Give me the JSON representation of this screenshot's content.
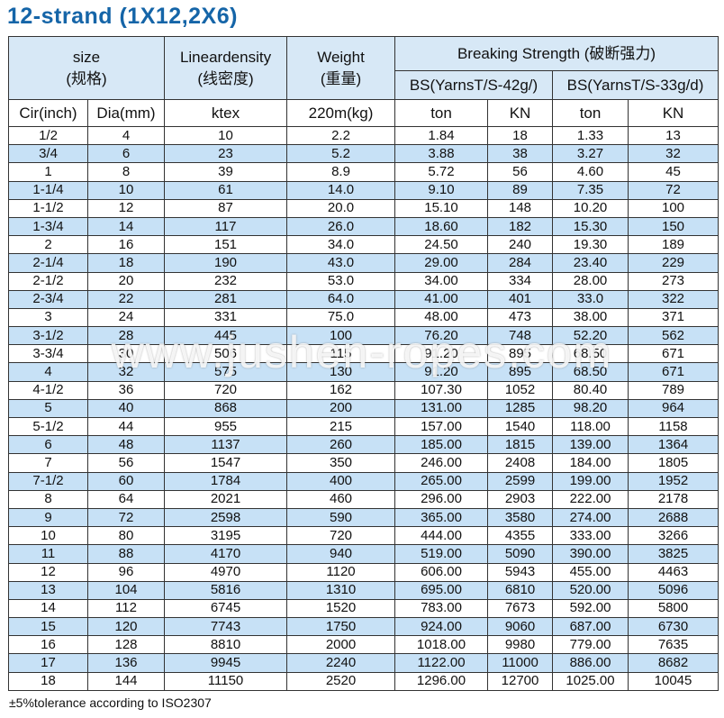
{
  "title": "12-strand (1X12,2X6)",
  "head": {
    "size": [
      "size",
      "(规格)"
    ],
    "linear": [
      "Lineardensity",
      "(线密度)"
    ],
    "weight": [
      "Weight",
      "(重量)"
    ],
    "breaking": "Breaking Strength (破断强力)",
    "bs42": "BS(YarnsT/S-42g/)",
    "bs33": "BS(YarnsT/S-33g/d)"
  },
  "units": [
    "Cir(inch)",
    "Dia(mm)",
    "ktex",
    "220m(kg)",
    "ton",
    "KN",
    "ton",
    "KN"
  ],
  "rows": [
    [
      "1/2",
      "4",
      "10",
      "2.2",
      "1.84",
      "18",
      "1.33",
      "13"
    ],
    [
      "3/4",
      "6",
      "23",
      "5.2",
      "3.88",
      "38",
      "3.27",
      "32"
    ],
    [
      "1",
      "8",
      "39",
      "8.9",
      "5.72",
      "56",
      "4.60",
      "45"
    ],
    [
      "1-1/4",
      "10",
      "61",
      "14.0",
      "9.10",
      "89",
      "7.35",
      "72"
    ],
    [
      "1-1/2",
      "12",
      "87",
      "20.0",
      "15.10",
      "148",
      "10.20",
      "100"
    ],
    [
      "1-3/4",
      "14",
      "117",
      "26.0",
      "18.60",
      "182",
      "15.30",
      "150"
    ],
    [
      "2",
      "16",
      "151",
      "34.0",
      "24.50",
      "240",
      "19.30",
      "189"
    ],
    [
      "2-1/4",
      "18",
      "190",
      "43.0",
      "29.00",
      "284",
      "23.40",
      "229"
    ],
    [
      "2-1/2",
      "20",
      "232",
      "53.0",
      "34.00",
      "334",
      "28.00",
      "273"
    ],
    [
      "2-3/4",
      "22",
      "281",
      "64.0",
      "41.00",
      "401",
      "33.0",
      "322"
    ],
    [
      "3",
      "24",
      "331",
      "75.0",
      "48.00",
      "473",
      "38.00",
      "371"
    ],
    [
      "3-1/2",
      "28",
      "445",
      "100",
      "76.20",
      "748",
      "52.20",
      "562"
    ],
    [
      "3-3/4",
      "30",
      "506",
      "115",
      "91.20",
      "895",
      "68.50",
      "671"
    ],
    [
      "4",
      "32",
      "575",
      "130",
      "91.20",
      "895",
      "68.50",
      "671"
    ],
    [
      "4-1/2",
      "36",
      "720",
      "162",
      "107.30",
      "1052",
      "80.40",
      "789"
    ],
    [
      "5",
      "40",
      "868",
      "200",
      "131.00",
      "1285",
      "98.20",
      "964"
    ],
    [
      "5-1/2",
      "44",
      "955",
      "215",
      "157.00",
      "1540",
      "118.00",
      "1158"
    ],
    [
      "6",
      "48",
      "1137",
      "260",
      "185.00",
      "1815",
      "139.00",
      "1364"
    ],
    [
      "7",
      "56",
      "1547",
      "350",
      "246.00",
      "2408",
      "184.00",
      "1805"
    ],
    [
      "7-1/2",
      "60",
      "1784",
      "400",
      "265.00",
      "2599",
      "199.00",
      "1952"
    ],
    [
      "8",
      "64",
      "2021",
      "460",
      "296.00",
      "2903",
      "222.00",
      "2178"
    ],
    [
      "9",
      "72",
      "2598",
      "590",
      "365.00",
      "3580",
      "274.00",
      "2688"
    ],
    [
      "10",
      "80",
      "3195",
      "720",
      "444.00",
      "4355",
      "333.00",
      "3266"
    ],
    [
      "11",
      "88",
      "4170",
      "940",
      "519.00",
      "5090",
      "390.00",
      "3825"
    ],
    [
      "12",
      "96",
      "4970",
      "1120",
      "606.00",
      "5943",
      "455.00",
      "4463"
    ],
    [
      "13",
      "104",
      "5816",
      "1310",
      "695.00",
      "6810",
      "520.00",
      "5096"
    ],
    [
      "14",
      "112",
      "6745",
      "1520",
      "783.00",
      "7673",
      "592.00",
      "5800"
    ],
    [
      "15",
      "120",
      "7743",
      "1750",
      "924.00",
      "9060",
      "687.00",
      "6730"
    ],
    [
      "16",
      "128",
      "8810",
      "2000",
      "1018.00",
      "9980",
      "779.00",
      "7635"
    ],
    [
      "17",
      "136",
      "9945",
      "2240",
      "1122.00",
      "11000",
      "886.00",
      "8682"
    ],
    [
      "18",
      "144",
      "11150",
      "2520",
      "1296.00",
      "12700",
      "1025.00",
      "10045"
    ]
  ],
  "footnote": "±5%tolerance according to ISO2307",
  "watermark": "www.jushen-ropes.com"
}
